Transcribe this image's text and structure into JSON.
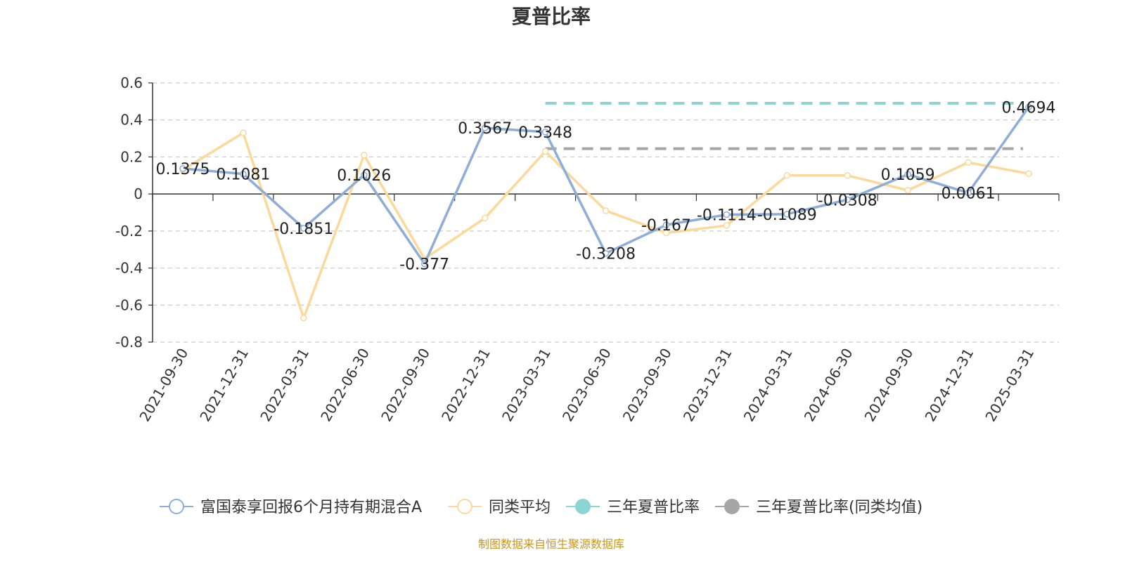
{
  "chart_data": {
    "type": "line",
    "title": "夏普比率",
    "categories": [
      "2021-09-30",
      "2021-12-31",
      "2022-03-31",
      "2022-06-30",
      "2022-09-30",
      "2022-12-31",
      "2023-03-31",
      "2023-06-30",
      "2023-09-30",
      "2023-12-31",
      "2024-03-31",
      "2024-06-30",
      "2024-09-30",
      "2024-12-31",
      "2025-03-31"
    ],
    "ylim": [
      -0.8,
      0.6
    ],
    "yticks": [
      "0.6",
      "0.4",
      "0.2",
      "0",
      "-0.2",
      "-0.4",
      "-0.6",
      "-0.8"
    ],
    "grid": true,
    "legend_position": "bottom",
    "series": [
      {
        "name": "富国泰享回报6个月持有期混合A",
        "color": "#8eaed8",
        "values": [
          0.1375,
          0.1081,
          -0.1851,
          0.1026,
          -0.377,
          0.3567,
          0.3348,
          -0.3208,
          -0.167,
          -0.1114,
          -0.1089,
          -0.0308,
          0.1059,
          0.0061,
          0.4694
        ],
        "labels": [
          "0.1375",
          "0.1081",
          "-0.1851",
          "0.1026",
          "-0.377",
          "0.3567",
          "0.3348",
          "-0.3208",
          "-0.167",
          "-0.1114",
          "-0.1089",
          "-0.0308",
          "0.1059",
          "0.0061",
          "0.4694"
        ]
      },
      {
        "name": "同类平均",
        "color": "#fbd99a",
        "values": [
          0.13,
          0.33,
          -0.67,
          0.21,
          -0.35,
          -0.13,
          0.23,
          -0.09,
          -0.21,
          -0.17,
          0.1,
          0.1,
          0.02,
          0.17,
          0.11
        ]
      },
      {
        "name": "三年夏普比率",
        "color": "#8dd5d4",
        "value": 0.49,
        "start_category": "2023-03-31"
      },
      {
        "name": "三年夏普比率(同类均值)",
        "color": "#a6a6a6",
        "value": 0.245,
        "start_category": "2023-03-31"
      }
    ]
  },
  "footer": {
    "source": "制图数据来自恒生聚源数据库"
  }
}
